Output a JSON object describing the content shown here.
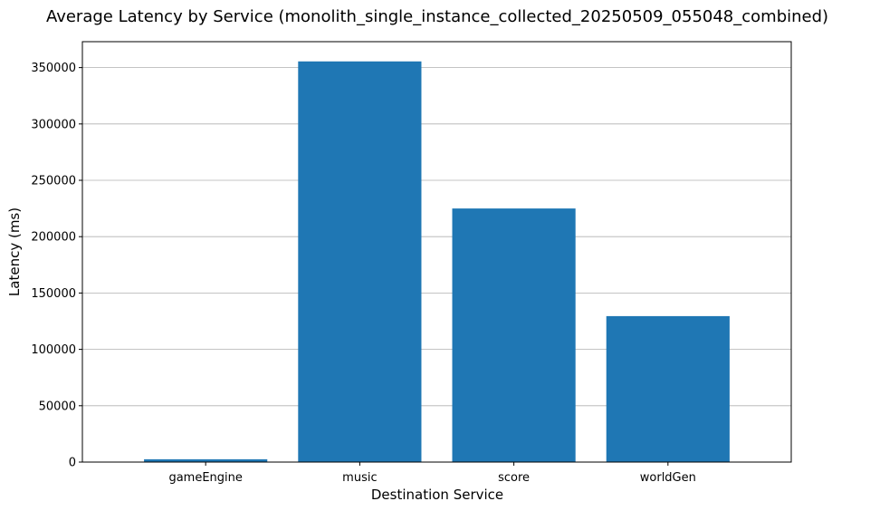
{
  "chart_data": {
    "type": "bar",
    "title": "Average Latency by Service (monolith_single_instance_collected_20250509_055048_combined)",
    "xlabel": "Destination Service",
    "ylabel": "Latency (ms)",
    "categories": [
      "gameEngine",
      "music",
      "score",
      "worldGen"
    ],
    "values": [
      2500,
      355500,
      225000,
      129500
    ],
    "ylim": [
      0,
      373000
    ],
    "yticks": [
      0,
      50000,
      100000,
      150000,
      200000,
      250000,
      300000,
      350000
    ],
    "ytick_labels": [
      "0",
      "50000",
      "100000",
      "150000",
      "200000",
      "250000",
      "300000",
      "350000"
    ],
    "grid": "y",
    "bar_color": "#1f77b4"
  }
}
